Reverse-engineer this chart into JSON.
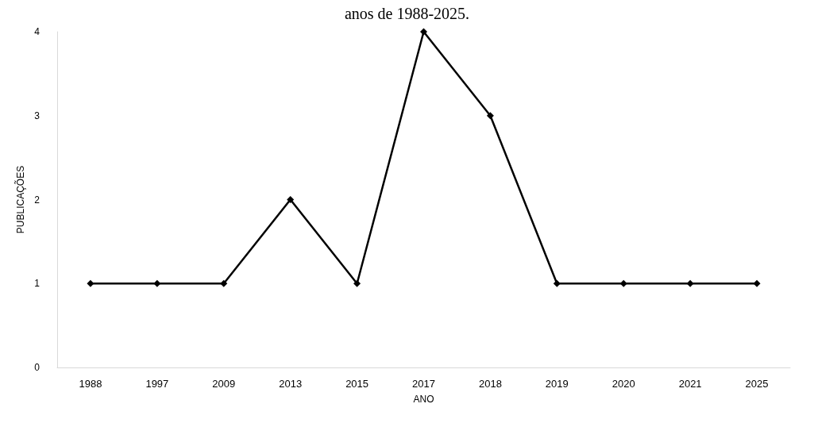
{
  "chart_data": {
    "type": "line",
    "title": "anos de 1988-2025.",
    "xlabel": "ANO",
    "ylabel": "PUBLICAÇÕES",
    "categories": [
      "1988",
      "1997",
      "2009",
      "2013",
      "2015",
      "2017",
      "2018",
      "2019",
      "2020",
      "2021",
      "2025"
    ],
    "series": [
      {
        "color": "#000000",
        "values": [
          1,
          1,
          1,
          2,
          1,
          4,
          3,
          1,
          1,
          1,
          1
        ]
      }
    ],
    "ylim": [
      0,
      4
    ],
    "yticks": [
      0,
      1,
      2,
      3,
      4
    ],
    "grid": false,
    "marker": "diamond",
    "line_style": "solid"
  }
}
